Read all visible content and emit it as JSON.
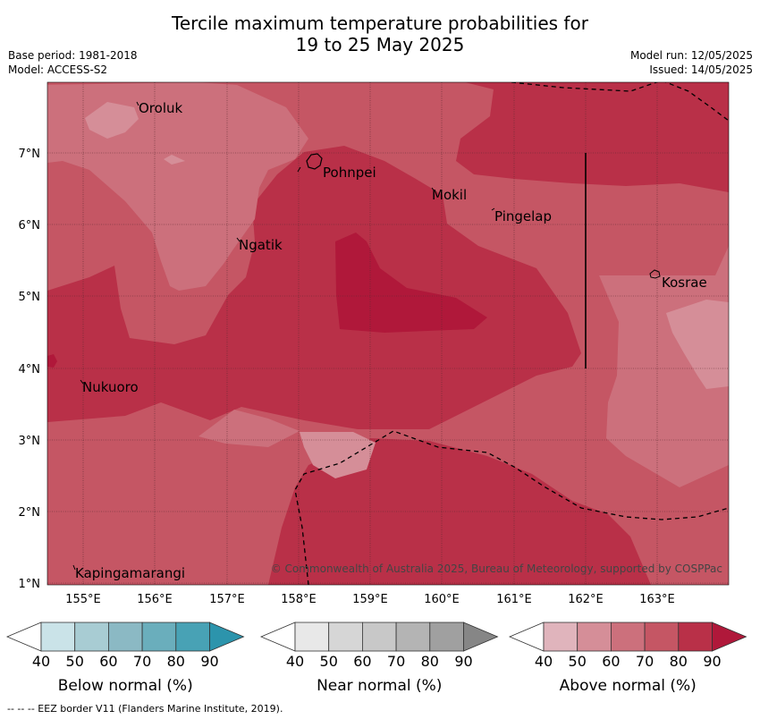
{
  "title": {
    "line1": "Tercile maximum temperature probabilities for",
    "line2": "19 to 25 May 2025"
  },
  "meta": {
    "base_period": "Base period: 1981-2018",
    "model": "Model: ACCESS-S2",
    "model_run": "Model run: 12/05/2025",
    "issued": "Issued: 14/05/2025"
  },
  "map": {
    "copyright": "© Commonwealth of Australia 2025, Bureau of Meteorology, supported by COSPPac",
    "lat_labels": [
      "7°N",
      "6°N",
      "5°N",
      "4°N",
      "3°N",
      "2°N",
      "1°N"
    ],
    "lon_labels": [
      "155°E",
      "156°E",
      "157°E",
      "158°E",
      "159°E",
      "160°E",
      "161°E",
      "162°E",
      "163°E"
    ],
    "places": [
      "Oroluk",
      "Pohnpei",
      "Mokil",
      "Pingelap",
      "Ngatik",
      "Kosrae",
      "Nukuoro",
      "Kapingamarangi"
    ]
  },
  "legends": [
    {
      "label": "Below normal (%)",
      "ticks": [
        "40",
        "50",
        "60",
        "70",
        "80",
        "90"
      ],
      "colors": [
        "#cae3e8",
        "#a8ccd3",
        "#8bb9c4",
        "#6aaebc",
        "#48a2b5",
        "#2c94ac"
      ]
    },
    {
      "label": "Near normal (%)",
      "ticks": [
        "40",
        "50",
        "60",
        "70",
        "80",
        "90"
      ],
      "colors": [
        "#e8e8e8",
        "#d6d6d6",
        "#c8c8c8",
        "#b4b4b4",
        "#a0a0a0",
        "#868686"
      ]
    },
    {
      "label": "Above normal (%)",
      "ticks": [
        "40",
        "50",
        "60",
        "70",
        "80",
        "90"
      ],
      "colors": [
        "#e0b4bc",
        "#d58e98",
        "#cc707c",
        "#c55664",
        "#b93048",
        "#b0183a"
      ]
    }
  ],
  "footer": "--  --  -- EEZ border V11 (Flanders Marine Institute, 2019)."
}
